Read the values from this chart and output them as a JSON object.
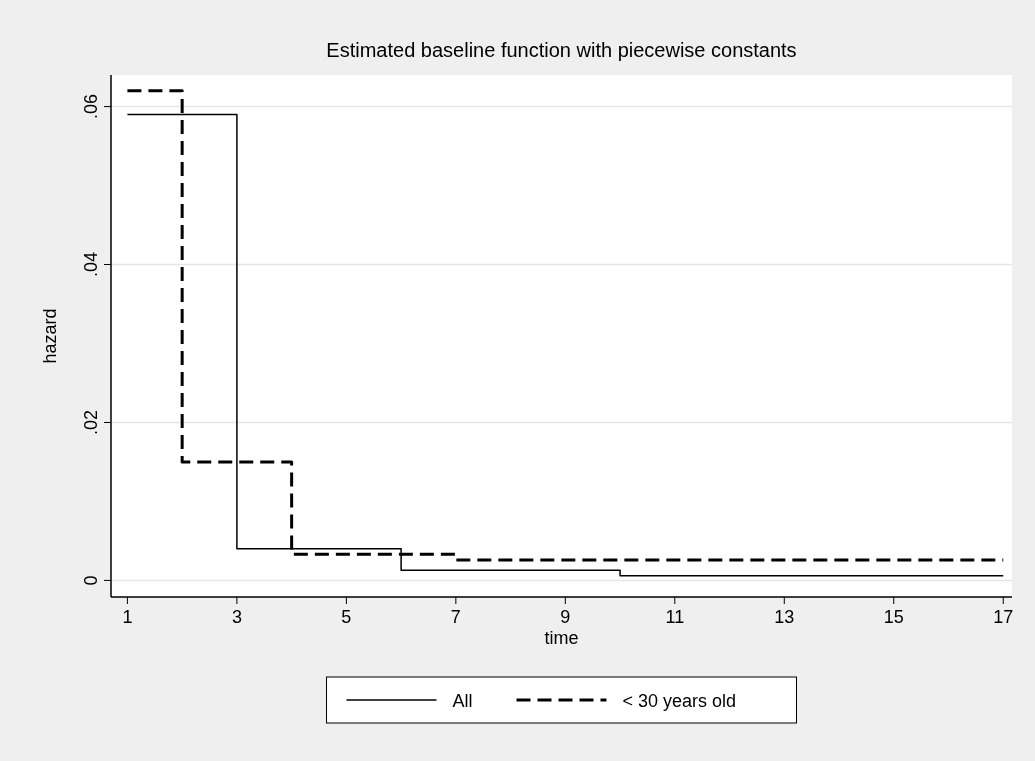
{
  "chart_data": {
    "type": "step",
    "title": "Estimated baseline function with piecewise constants",
    "xlabel": "time",
    "ylabel": "hazard",
    "xlim": [
      0.7,
      17.16
    ],
    "xticks": [
      1,
      3,
      5,
      7,
      9,
      11,
      13,
      15,
      17
    ],
    "ylim": [
      -0.0021,
      0.064
    ],
    "yticks": [
      {
        "value": 0,
        "label": "0"
      },
      {
        "value": 0.02,
        "label": ".02"
      },
      {
        "value": 0.04,
        "label": ".04"
      },
      {
        "value": 0.06,
        "label": ".06"
      }
    ],
    "grid": "y",
    "legend": "bottom",
    "series": [
      {
        "name": "All",
        "color": "#000000",
        "line_style": "solid",
        "x": [
          1,
          3,
          6,
          10,
          17
        ],
        "values": [
          0.059,
          0.004,
          0.0013,
          0.0006,
          0.0006
        ]
      },
      {
        "name": "< 30 years old",
        "color": "#000000",
        "line_style": "dashed",
        "x": [
          1,
          2,
          4,
          7,
          17
        ],
        "values": [
          0.062,
          0.015,
          0.0033,
          0.0026,
          0.0026
        ]
      }
    ]
  }
}
